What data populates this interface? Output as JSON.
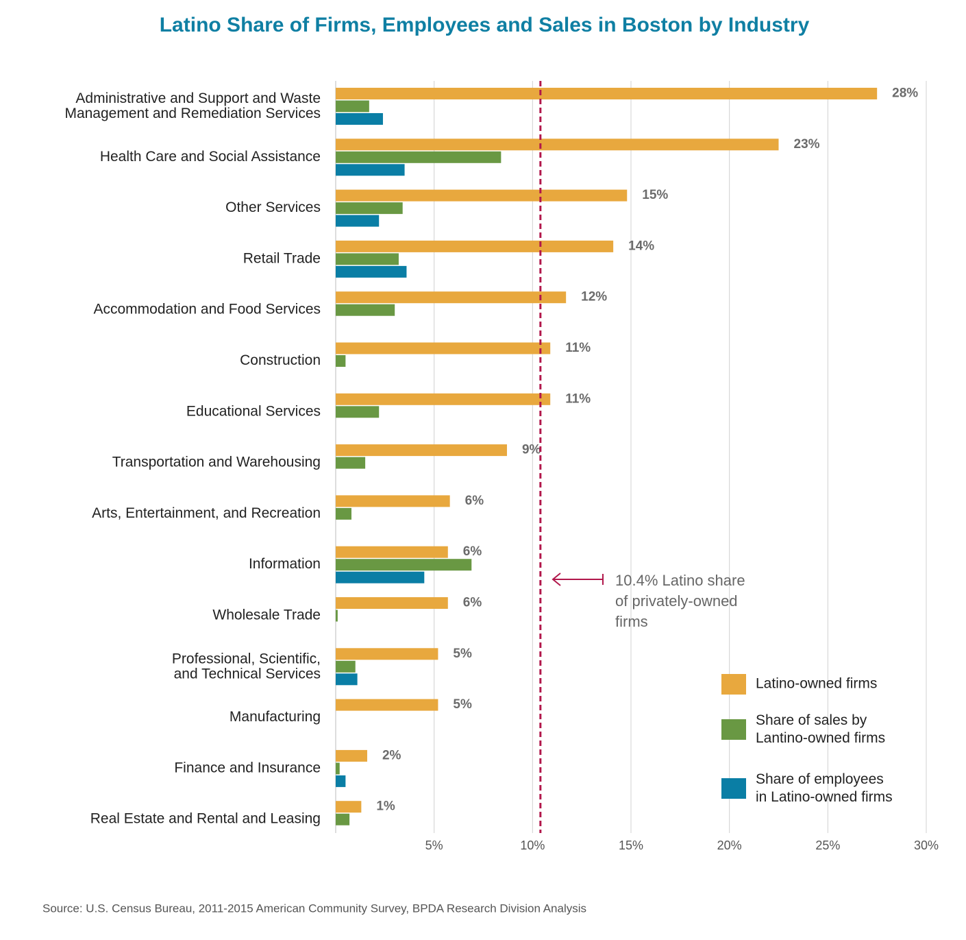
{
  "chart_data": {
    "type": "bar",
    "orientation": "horizontal",
    "title": "Latino Share of Firms, Employees and Sales in Boston by Industry",
    "categories": [
      "Administrative and Support and Waste\nManagement and Remediation Services",
      "Health Care and Social Assistance",
      "Other Services",
      "Retail Trade",
      "Accommodation and Food Services",
      "Construction",
      "Educational Services",
      "Transportation and Warehousing",
      "Arts, Entertainment, and Recreation",
      "Information",
      "Wholesale Trade",
      "Professional, Scientific,\nand Technical Services",
      "Manufacturing",
      "Finance and Insurance",
      "Real Estate and Rental and Leasing"
    ],
    "series": [
      {
        "name": "Latino-owned firms",
        "color": "#e8a83e",
        "values": [
          27.5,
          22.5,
          14.8,
          14.1,
          11.7,
          10.9,
          10.9,
          8.7,
          5.8,
          5.7,
          5.7,
          5.2,
          5.2,
          1.6,
          1.3
        ],
        "value_labels": [
          "28%",
          "23%",
          "15%",
          "14%",
          "12%",
          "11%",
          "11%",
          "9%",
          "6%",
          "6%",
          "6%",
          "5%",
          "5%",
          "2%",
          "1%"
        ]
      },
      {
        "name": "Share of sales by\nLantino-owned firms",
        "color": "#699843",
        "values": [
          1.7,
          8.4,
          3.4,
          3.2,
          3.0,
          0.5,
          2.2,
          1.5,
          0.8,
          6.9,
          0.1,
          1.0,
          null,
          0.2,
          0.7
        ]
      },
      {
        "name": "Share of employees\nin Latino-owned firms",
        "color": "#0a7ea5",
        "values": [
          2.4,
          3.5,
          2.2,
          3.6,
          null,
          null,
          null,
          null,
          null,
          4.5,
          null,
          1.1,
          null,
          0.5,
          null
        ]
      }
    ],
    "xlim": [
      0,
      30
    ],
    "xticks": [
      {
        "value": 5,
        "label": "5%"
      },
      {
        "value": 10,
        "label": "10%"
      },
      {
        "value": 15,
        "label": "15%"
      },
      {
        "value": 20,
        "label": "20%"
      },
      {
        "value": 25,
        "label": "25%"
      },
      {
        "value": 30,
        "label": "30%"
      }
    ],
    "grid": true,
    "legend": "lower right",
    "reference_line": {
      "value": 10.4,
      "color": "#b1174b",
      "label": [
        "10.4% Latino share",
        "of privately-owned",
        "firms"
      ]
    },
    "source": "Source: U.S. Census Bureau, 2011-2015 American Community Survey, BPDA Research Division Analysis"
  }
}
